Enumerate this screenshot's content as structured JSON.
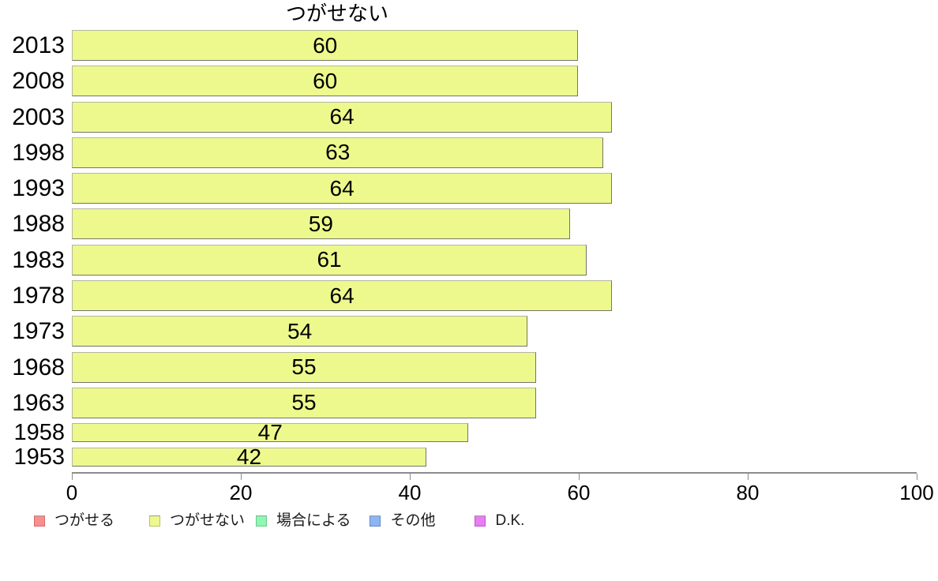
{
  "chart_data": {
    "type": "bar",
    "orientation": "horizontal",
    "title": "つがせない",
    "categories": [
      "2013",
      "2008",
      "2003",
      "1998",
      "1993",
      "1988",
      "1983",
      "1978",
      "1973",
      "1968",
      "1963",
      "1958",
      "1953"
    ],
    "series": [
      {
        "name": "つがせない",
        "values": [
          60,
          60,
          64,
          63,
          64,
          59,
          61,
          64,
          54,
          55,
          55,
          47,
          42
        ]
      }
    ],
    "values": [
      60,
      60,
      64,
      63,
      64,
      59,
      61,
      64,
      54,
      55,
      55,
      47,
      42
    ],
    "bar_labels": [
      "60",
      "60",
      "64",
      "63",
      "64",
      "59",
      "61",
      "64",
      "54",
      "55",
      "55",
      "47",
      "42"
    ],
    "xlabel": "",
    "ylabel": "",
    "xlim": [
      0,
      100
    ],
    "x_ticks": [
      0,
      20,
      40,
      60,
      80,
      100
    ],
    "grid": false,
    "legend_position": "bottom",
    "bar_color": "#edf98d",
    "bar_border_color": "#8a8a7a",
    "axis_color": "#8c8c8c",
    "legend": [
      {
        "label": "つがせる",
        "color": "#f78f8f",
        "border": "#d46a6a"
      },
      {
        "label": "つがせない",
        "color": "#edf98d",
        "border": "#b9c35f"
      },
      {
        "label": "場合による",
        "color": "#90f7b3",
        "border": "#66cc8a"
      },
      {
        "label": "その他",
        "color": "#8cb6f2",
        "border": "#6288cc"
      },
      {
        "label": "D.K.",
        "color": "#e97df2",
        "border": "#bb55cc"
      }
    ]
  }
}
